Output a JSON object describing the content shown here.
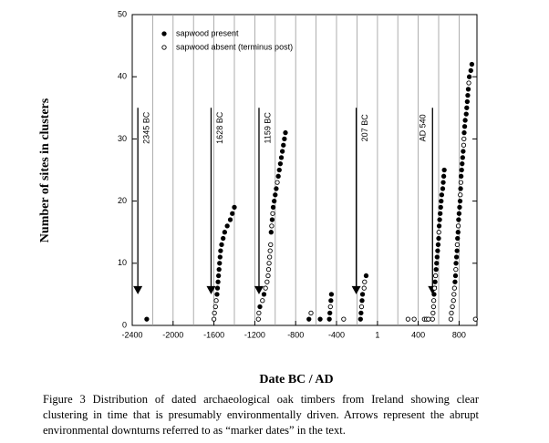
{
  "chart_data": {
    "type": "scatter",
    "xlabel": "Date BC / AD",
    "ylabel": "Number of sites in clusters",
    "caption": "Figure 3  Distribution of dated archaeological oak timbers from Ireland showing clear clustering in time that is presumably environmentally driven. Arrows represent the abrupt environmental downturns referred to as “marker dates” in the text.",
    "xlim": [
      -2400,
      975
    ],
    "ylim": [
      0,
      50
    ],
    "xticks": [
      -2400,
      -2000,
      -1600,
      -1200,
      -800,
      -400,
      1,
      400,
      800
    ],
    "yticks": [
      0,
      10,
      20,
      30,
      40,
      50
    ],
    "vlines": [
      -2200,
      -2000,
      -1800,
      -1600,
      -1400,
      -1200,
      -1000,
      -800,
      -600,
      -400,
      -200,
      1,
      200,
      400,
      600,
      800
    ],
    "annotations": [
      {
        "x": -2345,
        "label": "2345 BC"
      },
      {
        "x": -1628,
        "label": "1628 BC"
      },
      {
        "x": -1159,
        "label": "1159 BC"
      },
      {
        "x": -207,
        "label": "207 BC"
      },
      {
        "x": 540,
        "label": "AD 540"
      }
    ],
    "series": [
      {
        "name": "sapwood present",
        "color": "#000000",
        "filled": true,
        "x": [
          -2258,
          -1570,
          -1565,
          -1560,
          -1555,
          -1550,
          -1545,
          -1540,
          -1535,
          -1525,
          -1510,
          -1495,
          -1470,
          -1440,
          -1420,
          -1400,
          -1150,
          -1110,
          -1040,
          -1030,
          -1020,
          -1010,
          -1000,
          -990,
          -970,
          -960,
          -950,
          -940,
          -930,
          -920,
          -910,
          -900,
          -670,
          -560,
          -470,
          -465,
          -455,
          -450,
          -165,
          -160,
          -150,
          -145,
          -110,
          555,
          565,
          575,
          580,
          585,
          590,
          595,
          600,
          605,
          610,
          615,
          620,
          625,
          630,
          640,
          645,
          650,
          655,
          760,
          765,
          770,
          775,
          780,
          785,
          790,
          795,
          800,
          805,
          810,
          815,
          820,
          825,
          830,
          835,
          840,
          850,
          855,
          860,
          870,
          875,
          880,
          885,
          890,
          900,
          915,
          925
        ],
        "y": [
          1,
          5,
          6,
          7,
          8,
          9,
          10,
          11,
          12,
          13,
          14,
          15,
          16,
          17,
          18,
          19,
          3,
          5,
          15,
          17,
          19,
          20,
          21,
          22,
          24,
          25,
          26,
          27,
          28,
          29,
          30,
          31,
          1,
          1,
          1,
          2,
          4,
          5,
          1,
          2,
          4,
          5,
          8,
          5,
          7,
          9,
          10,
          11,
          12,
          13,
          14,
          16,
          17,
          18,
          19,
          20,
          21,
          22,
          23,
          24,
          25,
          7,
          8,
          10,
          11,
          12,
          14,
          15,
          17,
          18,
          19,
          20,
          22,
          24,
          25,
          26,
          27,
          28,
          31,
          32,
          33,
          34,
          35,
          36,
          37,
          38,
          40,
          41,
          42
        ]
      },
      {
        "name": "sapwood absent (terminus post)",
        "color": "#000000",
        "filled": false,
        "x": [
          -1600,
          -1595,
          -1585,
          -1578,
          -1165,
          -1160,
          -1125,
          -1095,
          -1080,
          -1070,
          -1065,
          -1060,
          -1055,
          -1050,
          -1045,
          -1035,
          -1025,
          -980,
          -650,
          -460,
          -330,
          -155,
          -130,
          -125,
          300,
          360,
          460,
          480,
          500,
          540,
          545,
          550,
          552,
          560,
          570,
          602,
          720,
          725,
          735,
          745,
          750,
          755,
          768,
          782,
          792,
          812,
          818,
          845,
          848,
          895,
          960
        ],
        "y": [
          1,
          2,
          3,
          4,
          1,
          2,
          4,
          6,
          7,
          8,
          9,
          10,
          11,
          12,
          13,
          16,
          18,
          23,
          2,
          3,
          1,
          3,
          6,
          7,
          1,
          1,
          1,
          1,
          1,
          1,
          2,
          3,
          4,
          6,
          8,
          15,
          1,
          2,
          3,
          4,
          5,
          6,
          9,
          13,
          16,
          21,
          23,
          29,
          30,
          39,
          1
        ]
      }
    ]
  }
}
